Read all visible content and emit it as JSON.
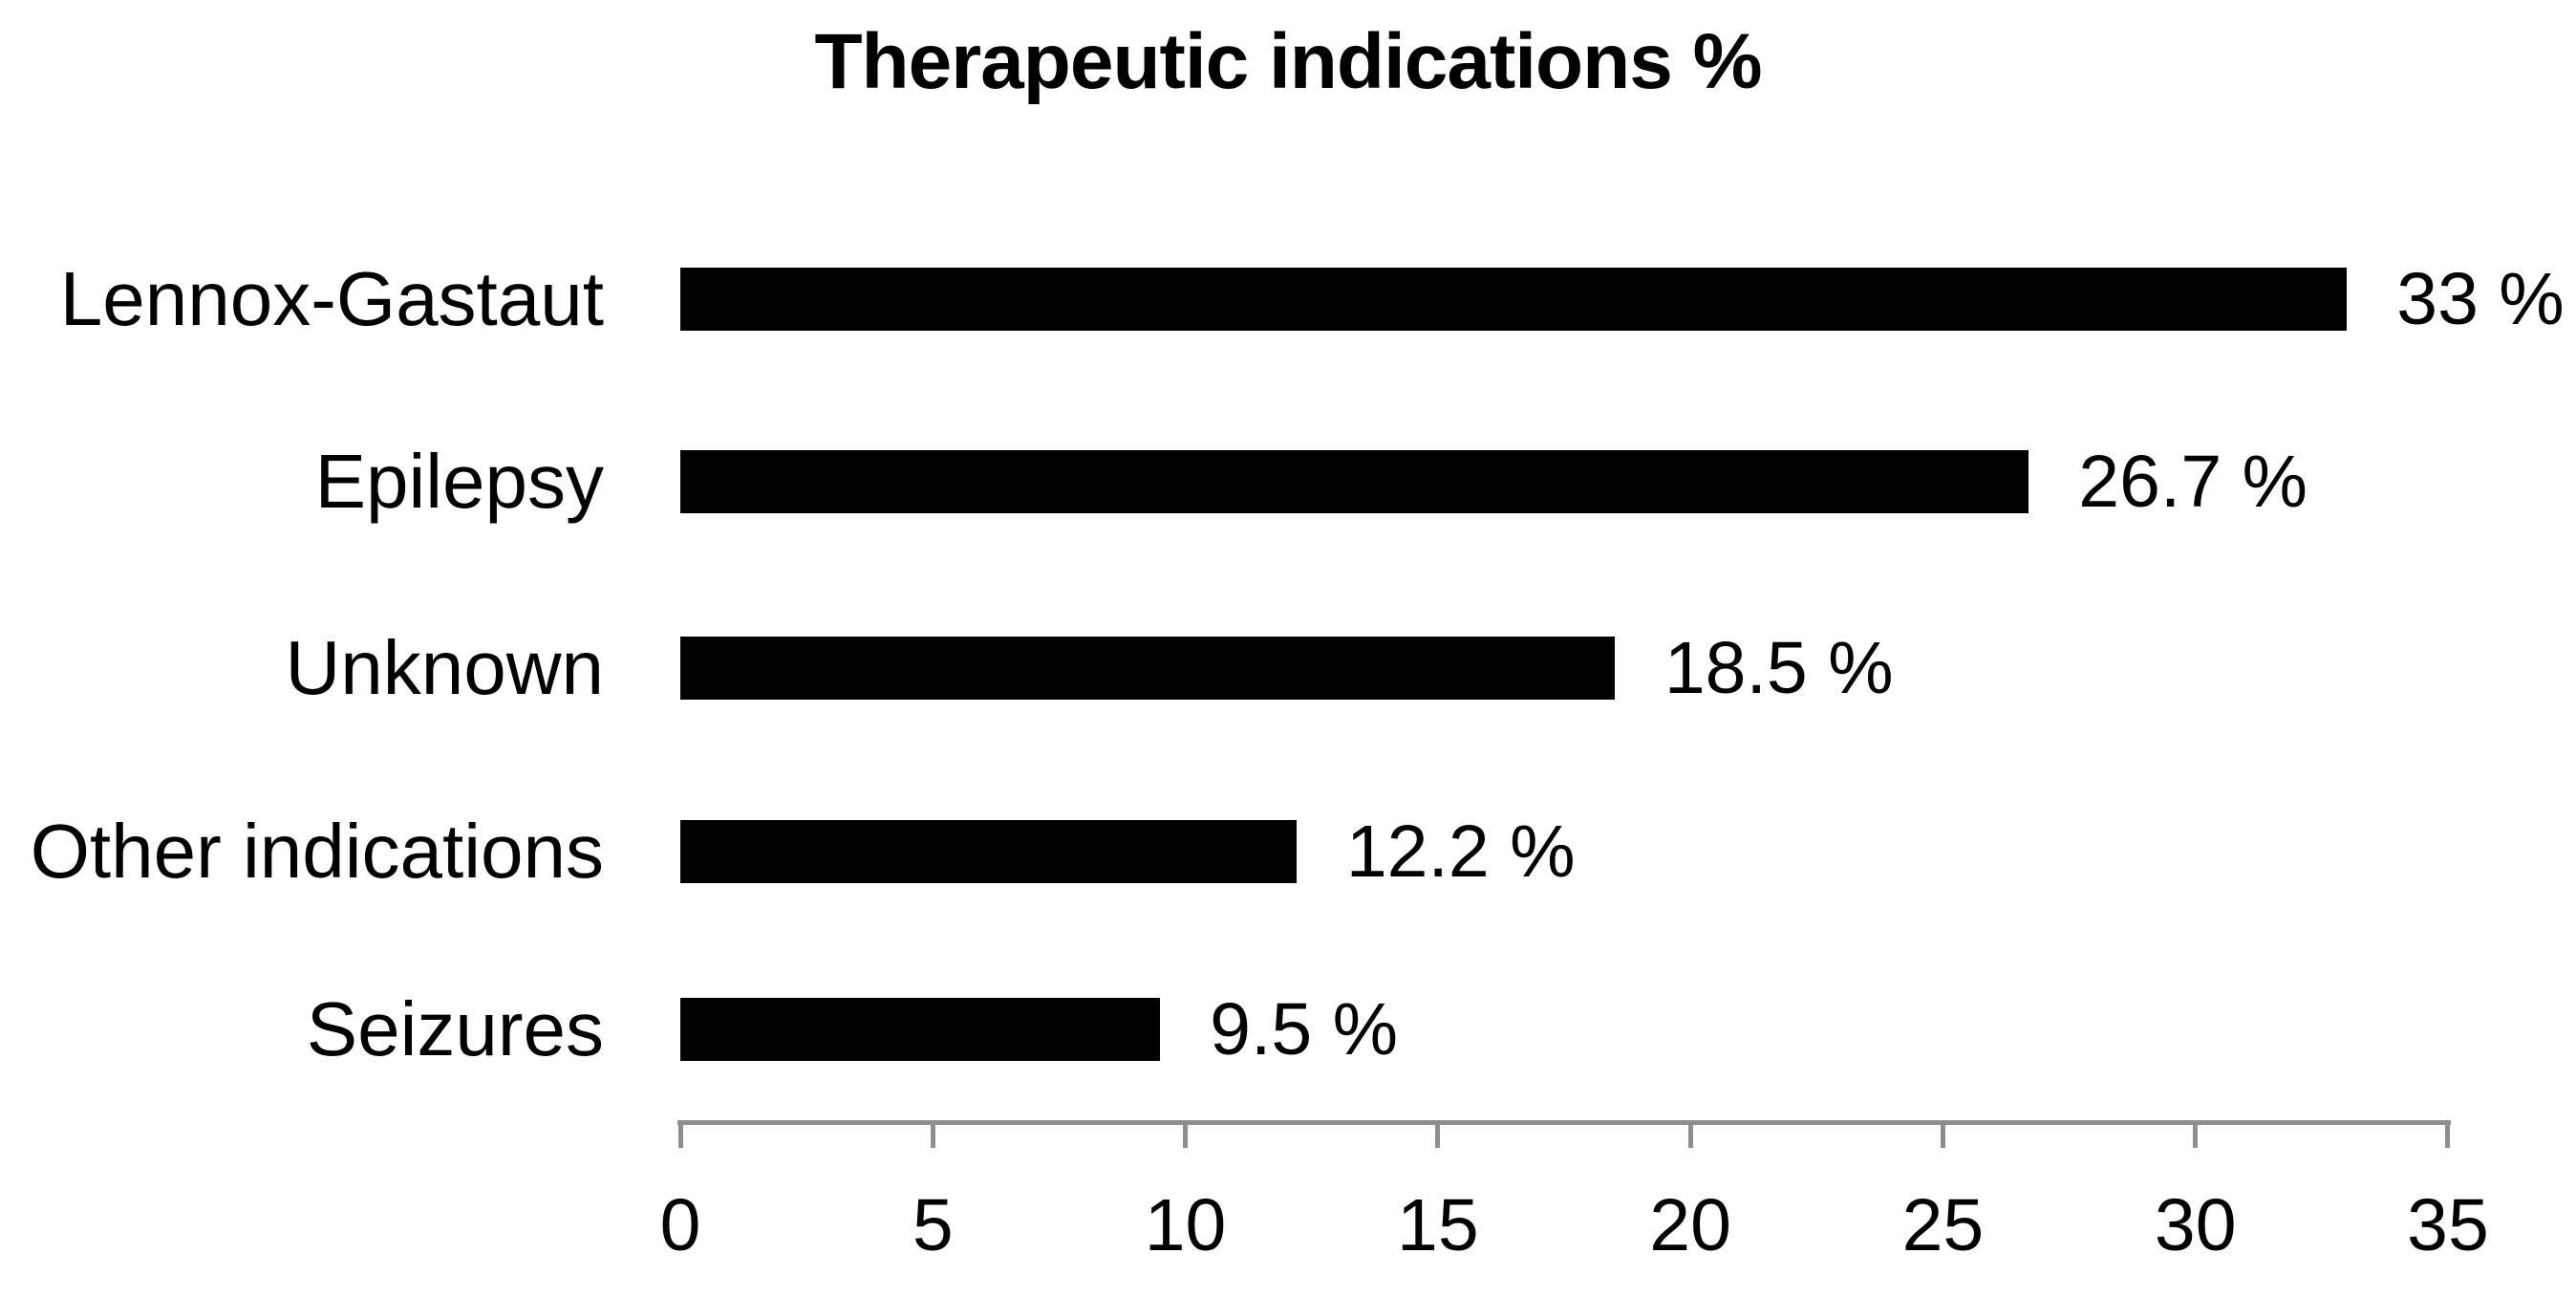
{
  "chart_data": {
    "type": "bar",
    "orientation": "horizontal",
    "title": "Therapeutic indications %",
    "categories": [
      "Lennox-Gastaut",
      "Epilepsy",
      "Unknown",
      "Other indications",
      "Seizures"
    ],
    "values": [
      33,
      26.7,
      18.5,
      12.2,
      9.5
    ],
    "value_labels": [
      "33 %",
      "26.7 %",
      "18.5 %",
      "12.2 %",
      "9.5 %"
    ],
    "xlabel": "",
    "ylabel": "",
    "xlim": [
      0,
      35
    ],
    "xticks": [
      0,
      5,
      10,
      15,
      20,
      25,
      30,
      35
    ],
    "grid": false,
    "legend": false,
    "bar_color": "#000000",
    "axis_color": "#8E8E8E",
    "text_color": "#000000",
    "background": "#FFFFFF"
  }
}
